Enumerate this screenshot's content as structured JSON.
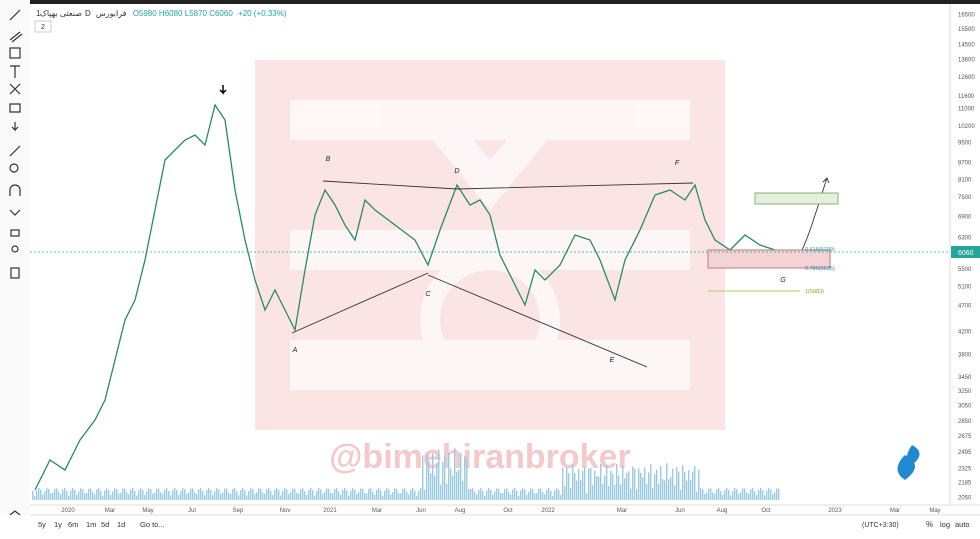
{
  "header": {
    "symbol": "بهپاک",
    "timeframe": "1D",
    "exchange": "فرابورس",
    "name": "صنعتی بهپاک",
    "ohlc": "O5980 H6080 L5870 C6060",
    "change": "+20 (+0.33%)",
    "indicators": "2"
  },
  "price_axis": {
    "labels": [
      "16500",
      "15500",
      "14500",
      "13600",
      "12600",
      "11600",
      "11000",
      "10200",
      "9500",
      "8700",
      "8100",
      "7500",
      "6900",
      "6300",
      "5500",
      "5100",
      "4700",
      "4200",
      "3800",
      "3450",
      "3250",
      "3050",
      "2850",
      "2675",
      "2495",
      "2325",
      "2185",
      "2050"
    ],
    "last": "6060"
  },
  "time_axis": {
    "labels": [
      "2020",
      "Mar",
      "May",
      "Jul",
      "Sep",
      "Nov",
      "2021",
      "Mar",
      "Jun",
      "Aug",
      "Oct",
      "2022",
      "Mar",
      "Jun",
      "Aug",
      "Oct",
      "2023",
      "Mar",
      "May"
    ]
  },
  "pattern_labels": [
    "A",
    "B",
    "C",
    "D",
    "E",
    "F",
    "G"
  ],
  "fib_labels": [
    "0.618(6109)",
    "0.786(5635)",
    "1(5083)"
  ],
  "watermark": "@bimehiranbroker",
  "bottom_bar": {
    "ranges": [
      "5y",
      "1y",
      "6m",
      "1m",
      "5d",
      "1d"
    ],
    "goto": "Go to...",
    "timezone": "(UTC+3:30)",
    "percent": "%",
    "log": "log",
    "auto": "auto"
  }
}
